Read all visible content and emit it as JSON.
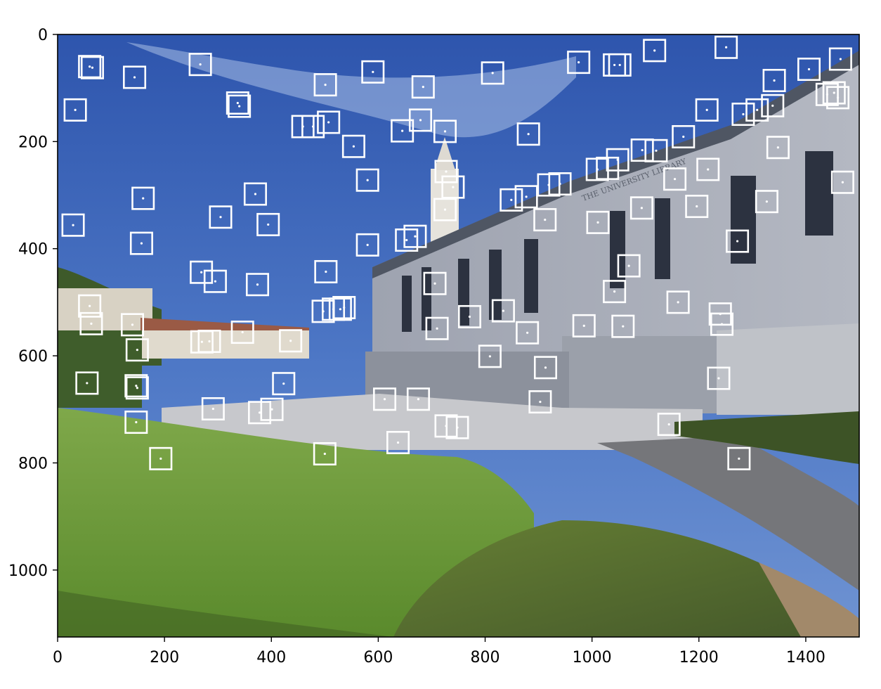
{
  "figure": {
    "type": "image-with-keypoint-boxes",
    "image_description": "Photo of a university library building (Doe Library) with blue sky, tower, green lawn and shrubs, overlaid with white square boxes marking keypoints",
    "building_inscription": "THE UNIVERSITY LIBRARY",
    "colors": {
      "box": "#ffffff",
      "axis": "#000000",
      "sky": "#3a62b8",
      "grass": "#6f9a3c",
      "building": "#a9adb7"
    }
  },
  "chart_data": {
    "type": "scatter",
    "title": "",
    "xlabel": "",
    "ylabel": "",
    "xlim": [
      0,
      1500
    ],
    "ylim": [
      1125,
      0
    ],
    "x_ticks": [
      0,
      200,
      400,
      600,
      800,
      1000,
      1200,
      1400
    ],
    "y_ticks": [
      0,
      200,
      400,
      600,
      800,
      1000
    ],
    "x_tick_labels": [
      "0",
      "200",
      "400",
      "600",
      "800",
      "1000",
      "1200",
      "1400"
    ],
    "y_tick_labels": [
      "0",
      "200",
      "400",
      "600",
      "800",
      "1000"
    ],
    "box_half_size": 20,
    "keypoints": [
      [
        60,
        60
      ],
      [
        65,
        62
      ],
      [
        144,
        80
      ],
      [
        267,
        56
      ],
      [
        33,
        141
      ],
      [
        337,
        128
      ],
      [
        340,
        134
      ],
      [
        501,
        94
      ],
      [
        590,
        70
      ],
      [
        684,
        98
      ],
      [
        814,
        72
      ],
      [
        975,
        52
      ],
      [
        1042,
        57
      ],
      [
        1052,
        57
      ],
      [
        1117,
        30
      ],
      [
        1251,
        24
      ],
      [
        1465,
        46
      ],
      [
        1406,
        65
      ],
      [
        1341,
        86
      ],
      [
        1453,
        109
      ],
      [
        1440,
        112
      ],
      [
        1460,
        118
      ],
      [
        160,
        306
      ],
      [
        370,
        298
      ],
      [
        305,
        341
      ],
      [
        29,
        356
      ],
      [
        394,
        355
      ],
      [
        157,
        390
      ],
      [
        580,
        272
      ],
      [
        725,
        181
      ],
      [
        727,
        256
      ],
      [
        740,
        285
      ],
      [
        725,
        327
      ],
      [
        554,
        209
      ],
      [
        645,
        180
      ],
      [
        679,
        160
      ],
      [
        459,
        172
      ],
      [
        478,
        172
      ],
      [
        507,
        164
      ],
      [
        881,
        186
      ],
      [
        1094,
        216
      ],
      [
        1120,
        217
      ],
      [
        1048,
        234
      ],
      [
        1010,
        252
      ],
      [
        1029,
        250
      ],
      [
        1171,
        191
      ],
      [
        1215,
        141
      ],
      [
        1283,
        149
      ],
      [
        1309,
        141
      ],
      [
        1338,
        133
      ],
      [
        1348,
        211
      ],
      [
        1469,
        276
      ],
      [
        1217,
        252
      ],
      [
        1155,
        270
      ],
      [
        1196,
        321
      ],
      [
        1327,
        312
      ],
      [
        1093,
        324
      ],
      [
        1011,
        351
      ],
      [
        912,
        346
      ],
      [
        877,
        303
      ],
      [
        849,
        309
      ],
      [
        940,
        279
      ],
      [
        919,
        281
      ],
      [
        269,
        444
      ],
      [
        295,
        461
      ],
      [
        374,
        467
      ],
      [
        502,
        443
      ],
      [
        580,
        393
      ],
      [
        653,
        384
      ],
      [
        669,
        377
      ],
      [
        706,
        465
      ],
      [
        710,
        549
      ],
      [
        771,
        527
      ],
      [
        834,
        516
      ],
      [
        879,
        557
      ],
      [
        913,
        622
      ],
      [
        809,
        601
      ],
      [
        903,
        686
      ],
      [
        985,
        544
      ],
      [
        1042,
        480
      ],
      [
        1058,
        545
      ],
      [
        1069,
        432
      ],
      [
        1161,
        500
      ],
      [
        1240,
        522
      ],
      [
        1243,
        541
      ],
      [
        1272,
        386
      ],
      [
        1237,
        642
      ],
      [
        1275,
        792
      ],
      [
        1144,
        728
      ],
      [
        60,
        507
      ],
      [
        63,
        540
      ],
      [
        140,
        542
      ],
      [
        149,
        589
      ],
      [
        147,
        656
      ],
      [
        149,
        660
      ],
      [
        147,
        724
      ],
      [
        193,
        792
      ],
      [
        270,
        574
      ],
      [
        284,
        573
      ],
      [
        346,
        556
      ],
      [
        436,
        572
      ],
      [
        423,
        652
      ],
      [
        291,
        699
      ],
      [
        378,
        706
      ],
      [
        401,
        700
      ],
      [
        497,
        517
      ],
      [
        516,
        513
      ],
      [
        529,
        513
      ],
      [
        536,
        510
      ],
      [
        612,
        681
      ],
      [
        675,
        681
      ],
      [
        727,
        731
      ],
      [
        748,
        734
      ],
      [
        637,
        762
      ],
      [
        500,
        783
      ],
      [
        55,
        651
      ]
    ]
  }
}
